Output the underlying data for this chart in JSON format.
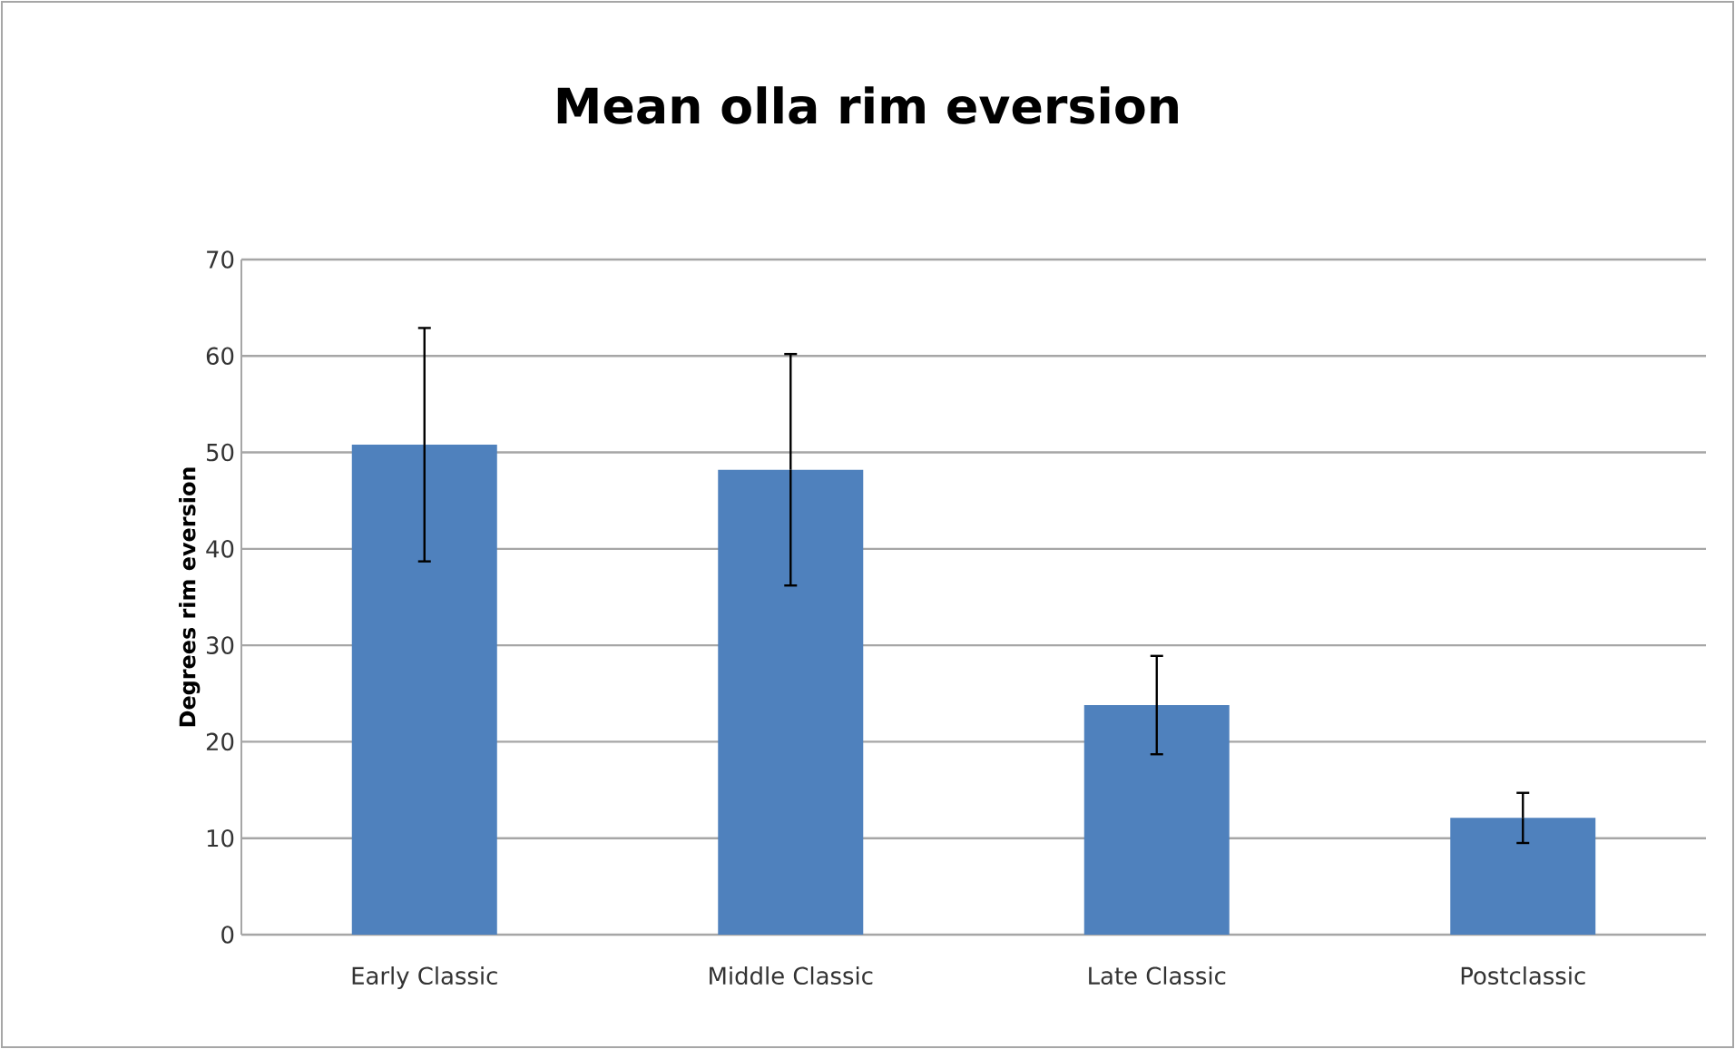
{
  "chart_data": {
    "type": "bar",
    "title": "Mean olla rim eversion",
    "ylabel": "Degrees rim eversion",
    "categories": [
      "Early Classic",
      "Middle Classic",
      "Late Classic",
      "Postclassic"
    ],
    "values": [
      50.8,
      48.2,
      23.8,
      12.1
    ],
    "errors": [
      12.1,
      12.0,
      5.1,
      2.6
    ],
    "color": "#4f81bd",
    "ylim": [
      0,
      70
    ],
    "yticks": [
      0,
      10,
      20,
      30,
      40,
      50,
      60,
      70
    ],
    "grid": "y"
  }
}
